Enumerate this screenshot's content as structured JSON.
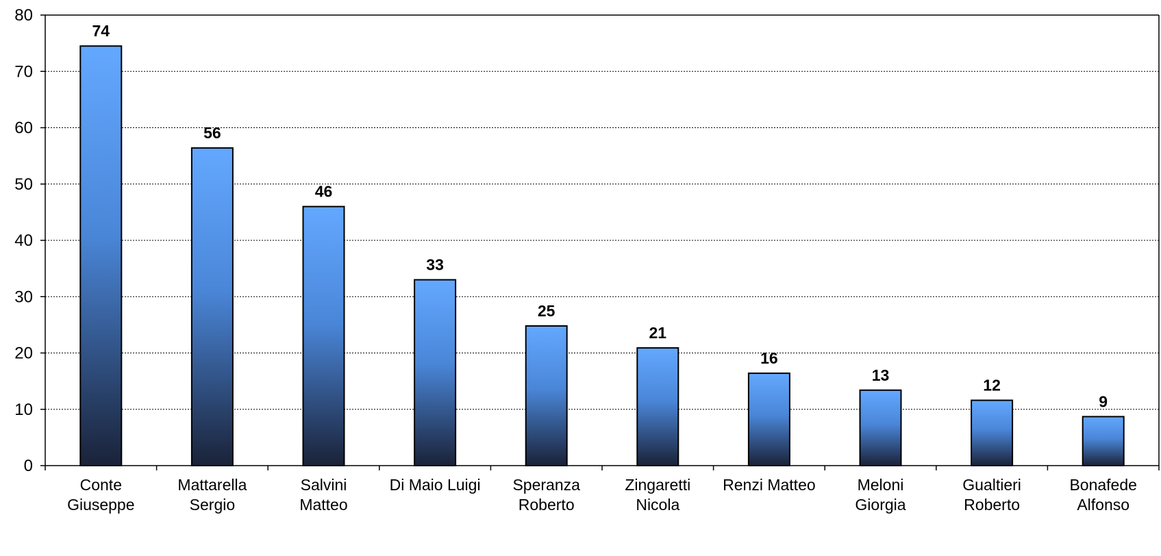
{
  "chart_data": {
    "type": "bar",
    "title": "",
    "xlabel": "",
    "ylabel": "",
    "ylim": [
      0,
      80
    ],
    "yticks": [
      0,
      10,
      20,
      30,
      40,
      50,
      60,
      70,
      80
    ],
    "grid": "horizontal-dotted",
    "legend": "none",
    "categories": [
      [
        "Conte",
        "Giuseppe"
      ],
      [
        "Mattarella",
        "Sergio"
      ],
      [
        "Salvini",
        "Matteo"
      ],
      [
        "Di Maio Luigi"
      ],
      [
        "Speranza",
        "Roberto"
      ],
      [
        "Zingaretti",
        "Nicola"
      ],
      [
        "Renzi Matteo"
      ],
      [
        "Meloni",
        "Giorgia"
      ],
      [
        "Gualtieri",
        "Roberto"
      ],
      [
        "Bonafede",
        "Alfonso"
      ]
    ],
    "values": [
      74.5,
      56.4,
      46,
      33,
      24.8,
      20.9,
      16.4,
      13.4,
      11.6,
      8.7
    ],
    "data_labels": [
      "74",
      "56",
      "46",
      "33",
      "25",
      "21",
      "16",
      "13",
      "12",
      "9"
    ],
    "colors": {
      "bar_top": "#63a8ff",
      "bar_bottom": "#1a2238",
      "bar_stroke": "#000000",
      "grid": "#000000",
      "axis": "#000000"
    }
  }
}
